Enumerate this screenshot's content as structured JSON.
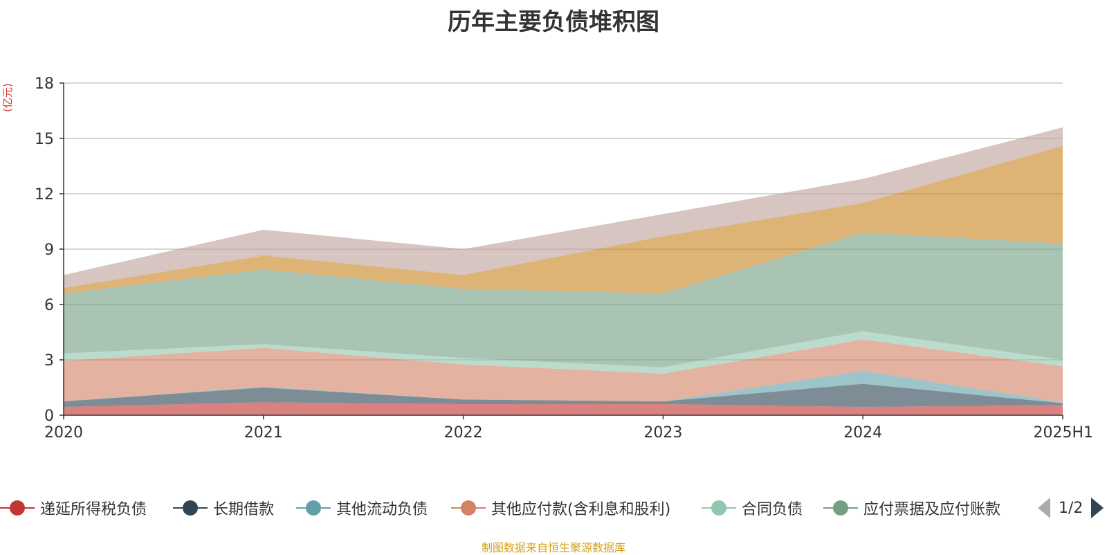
{
  "chart_data": {
    "type": "area",
    "stacked": true,
    "title": "历年主要负债堆积图",
    "unit_label": "(亿元)",
    "categories": [
      "2020",
      "2021",
      "2022",
      "2023",
      "2024",
      "2025H1"
    ],
    "ylim": [
      0,
      18
    ],
    "yticks": [
      0,
      3,
      6,
      9,
      12,
      15,
      18
    ],
    "grid": true,
    "legend_position": "bottom",
    "series": [
      {
        "name": "递延所得税负债",
        "color": "#c23531",
        "values": [
          0.45,
          0.7,
          0.6,
          0.6,
          0.45,
          0.55
        ]
      },
      {
        "name": "长期借款",
        "color": "#2f4554",
        "values": [
          0.3,
          0.8,
          0.25,
          0.15,
          1.25,
          0.1
        ]
      },
      {
        "name": "其他流动负债",
        "color": "#61a0a8",
        "values": [
          0.0,
          0.05,
          0.0,
          0.0,
          0.7,
          0.05
        ]
      },
      {
        "name": "其他应付款(含利息和股利)",
        "color": "#d48265",
        "values": [
          2.2,
          2.1,
          1.9,
          1.5,
          1.7,
          1.95
        ]
      },
      {
        "name": "合同负债",
        "color": "#91c7ae",
        "values": [
          0.4,
          0.2,
          0.35,
          0.35,
          0.45,
          0.35
        ]
      },
      {
        "name": "应付票据及应付账款",
        "color": "#749f83",
        "values": [
          3.25,
          4.05,
          3.75,
          4.0,
          5.35,
          6.3
        ]
      },
      {
        "name": "",
        "color": "#ca8622",
        "values": [
          0.3,
          0.75,
          0.75,
          3.1,
          1.6,
          5.3
        ]
      },
      {
        "name": "",
        "color": "#bda29a",
        "values": [
          0.7,
          1.4,
          1.4,
          1.2,
          1.3,
          1.0
        ]
      }
    ]
  },
  "legend": {
    "items": [
      {
        "label": "递延所得税负债",
        "color": "#c23531"
      },
      {
        "label": "长期借款",
        "color": "#2f4554"
      },
      {
        "label": "其他流动负债",
        "color": "#61a0a8"
      },
      {
        "label": "其他应付款(含利息和股利)",
        "color": "#d48265"
      },
      {
        "label": "合同负债",
        "color": "#91c7ae"
      },
      {
        "label": "应付票据及应付账款",
        "color": "#749f83"
      }
    ],
    "page_text": "1/2"
  },
  "source_text": "制图数据来自恒生聚源数据库"
}
